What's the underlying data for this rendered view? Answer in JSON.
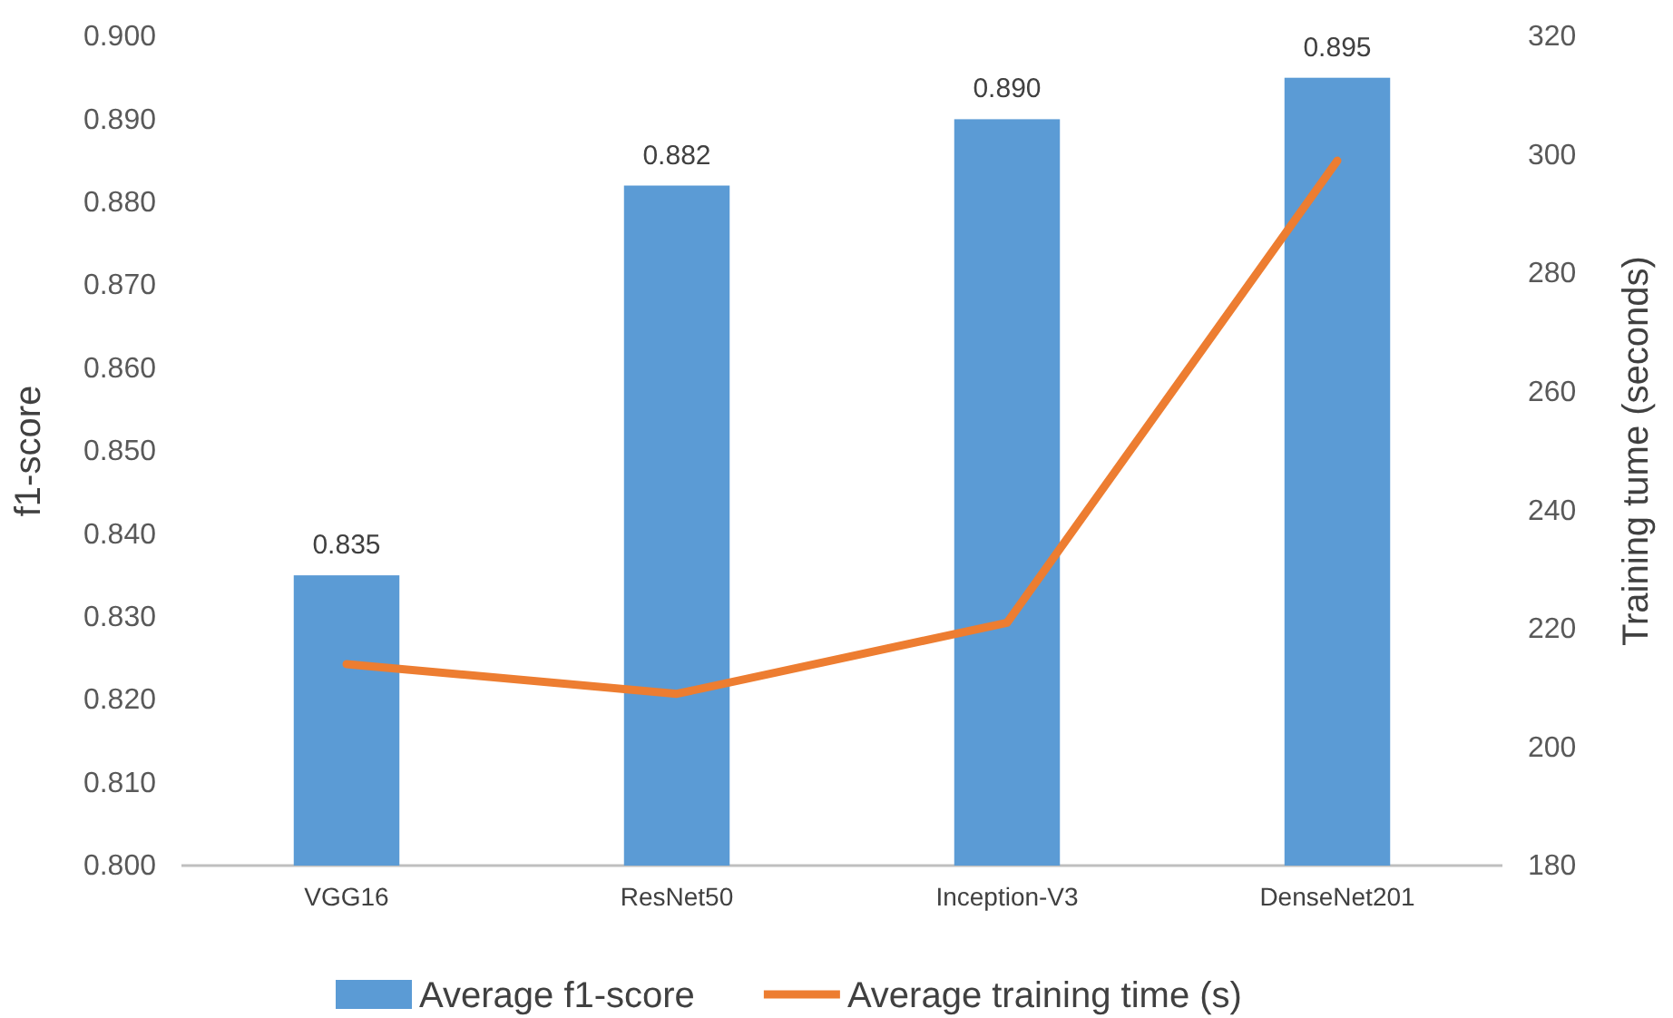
{
  "chart_data": {
    "type": "bar",
    "categories": [
      "VGG16",
      "ResNet50",
      "Inception-V3",
      "DenseNet201"
    ],
    "ylabel": "f1-score",
    "y2label": "Training tume (seconds)",
    "series": [
      {
        "name": "Average f1-score",
        "color": "#5b9bd5",
        "values": [
          0.835,
          0.882,
          0.89,
          0.895
        ],
        "value_labels": [
          "0.835",
          "0.882",
          "0.890",
          "0.895"
        ]
      },
      {
        "name": "Average training time (s)",
        "type": "line",
        "axis": "y2",
        "color": "#ed7d31",
        "values": [
          214,
          209,
          221,
          299
        ]
      }
    ],
    "ylim": [
      0.8,
      0.9
    ],
    "yticks": [
      {
        "value": 0.8,
        "label": "0.800"
      },
      {
        "value": 0.81,
        "label": "0.810"
      },
      {
        "value": 0.82,
        "label": "0.820"
      },
      {
        "value": 0.83,
        "label": "0.830"
      },
      {
        "value": 0.84,
        "label": "0.840"
      },
      {
        "value": 0.85,
        "label": "0.850"
      },
      {
        "value": 0.86,
        "label": "0.860"
      },
      {
        "value": 0.87,
        "label": "0.870"
      },
      {
        "value": 0.88,
        "label": "0.880"
      },
      {
        "value": 0.89,
        "label": "0.890"
      },
      {
        "value": 0.9,
        "label": "0.900"
      }
    ],
    "y2lim": [
      180,
      320
    ],
    "y2ticks": [
      180,
      200,
      220,
      240,
      260,
      280,
      300,
      320
    ],
    "grid": false,
    "legend": "bottom",
    "line_style": "solid",
    "marker": "none"
  }
}
